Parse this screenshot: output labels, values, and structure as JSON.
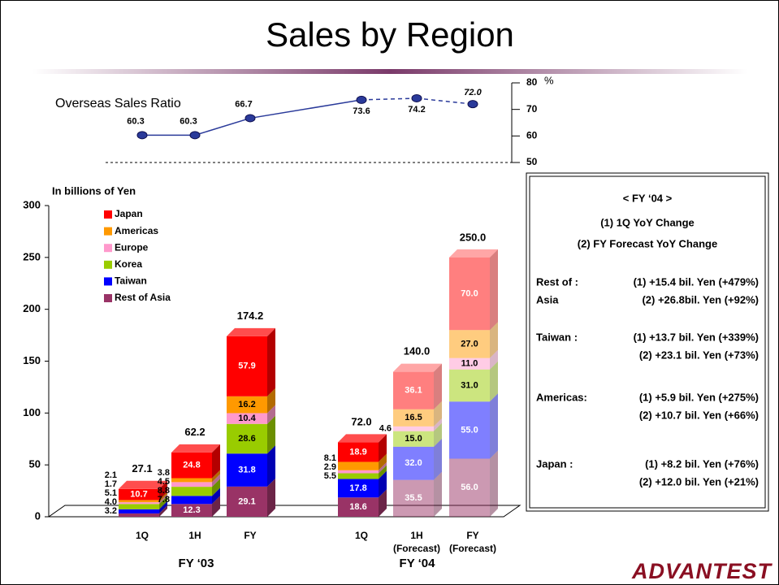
{
  "title": "Sales by Region",
  "chart_data": [
    {
      "type": "line",
      "title": "Overseas Sales Ratio",
      "y_unit": "%",
      "values": [
        60.3,
        60.3,
        66.7,
        73.6,
        74.2,
        72.0
      ],
      "value_labels": [
        "60.3",
        "60.3",
        "66.7",
        "73.6",
        "74.2",
        "72.0"
      ],
      "color": "#2a3a9a",
      "ylim": [
        50,
        80
      ],
      "yticks": [
        50,
        60,
        70,
        80
      ]
    },
    {
      "type": "stacked_bar",
      "y_label": "In billions of Yen",
      "categories": [
        "1Q",
        "1H",
        "FY",
        "1Q",
        "1H",
        "FY"
      ],
      "category_notes": [
        null,
        null,
        null,
        null,
        "(Forecast)",
        "(Forecast)"
      ],
      "groups": [
        {
          "name": "FY ‘03",
          "from": 0,
          "to": 2
        },
        {
          "name": "FY ‘04",
          "from": 3,
          "to": 5
        }
      ],
      "series": [
        {
          "name": "Rest of Asia",
          "color": "#993366",
          "values": [
            3.2,
            12.3,
            29.1,
            18.6,
            35.5,
            56.0
          ],
          "value_labels": [
            "3.2",
            "12.3",
            "29.1",
            "18.6",
            "35.5",
            "56.0"
          ]
        },
        {
          "name": "Taiwan",
          "color": "#0000ff",
          "values": [
            4.0,
            7.8,
            31.8,
            17.8,
            32.0,
            55.0
          ],
          "value_labels": [
            "4.0",
            "7.8",
            "31.8",
            "17.8",
            "32.0",
            "55.0"
          ]
        },
        {
          "name": "Korea",
          "color": "#99cc00",
          "values": [
            5.1,
            8.8,
            28.6,
            5.5,
            15.0,
            31.0
          ],
          "value_labels": [
            "5.1",
            "8.8",
            "28.6",
            "5.5",
            "15.0",
            "31.0"
          ]
        },
        {
          "name": "Europe",
          "color": "#ff99cc",
          "values": [
            1.7,
            4.5,
            10.4,
            2.9,
            4.6,
            11.0
          ],
          "value_labels": [
            "1.7",
            "4.5",
            "10.4",
            "2.9",
            "4.6",
            "11.0"
          ]
        },
        {
          "name": "Americas",
          "color": "#ff9900",
          "values": [
            2.1,
            3.8,
            16.2,
            8.1,
            16.5,
            27.0
          ],
          "value_labels": [
            "2.1",
            "3.8",
            "16.2",
            "8.1",
            "16.5",
            "27.0"
          ]
        },
        {
          "name": "Japan",
          "color": "#ff0000",
          "values": [
            10.7,
            24.8,
            57.9,
            18.9,
            36.1,
            70.0
          ],
          "value_labels": [
            "10.7",
            "24.8",
            "57.9",
            "18.9",
            "36.1",
            "70.0"
          ]
        }
      ],
      "totals": [
        27.1,
        62.2,
        174.2,
        72.0,
        140.0,
        250.0
      ],
      "total_labels": [
        "27.1",
        "62.2",
        "174.2",
        "72.0",
        "140.0",
        "250.0"
      ],
      "ylim": [
        0,
        300
      ],
      "yticks": [
        0,
        50,
        100,
        150,
        200,
        250,
        300
      ]
    }
  ],
  "info_box": {
    "heading": "< FY ‘04 >",
    "legend_lines": [
      "(1) 1Q YoY Change",
      "(2) FY Forecast YoY Change"
    ],
    "entries": [
      {
        "label": [
          "Rest of :",
          "Asia"
        ],
        "lines": [
          "(1) +15.4 bil. Yen (+479%)",
          "(2) +26.8bil. Yen (+92%)"
        ]
      },
      {
        "label": [
          "Taiwan :"
        ],
        "lines": [
          "(1) +13.7 bil. Yen (+339%)",
          "(2) +23.1 bil. Yen (+73%)"
        ]
      },
      {
        "label": [
          "Americas:"
        ],
        "lines": [
          "(1) +5.9 bil. Yen (+275%)",
          "(2) +10.7 bil. Yen (+66%)"
        ]
      },
      {
        "label": [
          "Japan :"
        ],
        "lines": [
          "(1) +8.2 bil. Yen (+76%)",
          "(2) +12.0 bil. Yen (+21%)"
        ]
      }
    ]
  },
  "logo": "ADVANTEST"
}
